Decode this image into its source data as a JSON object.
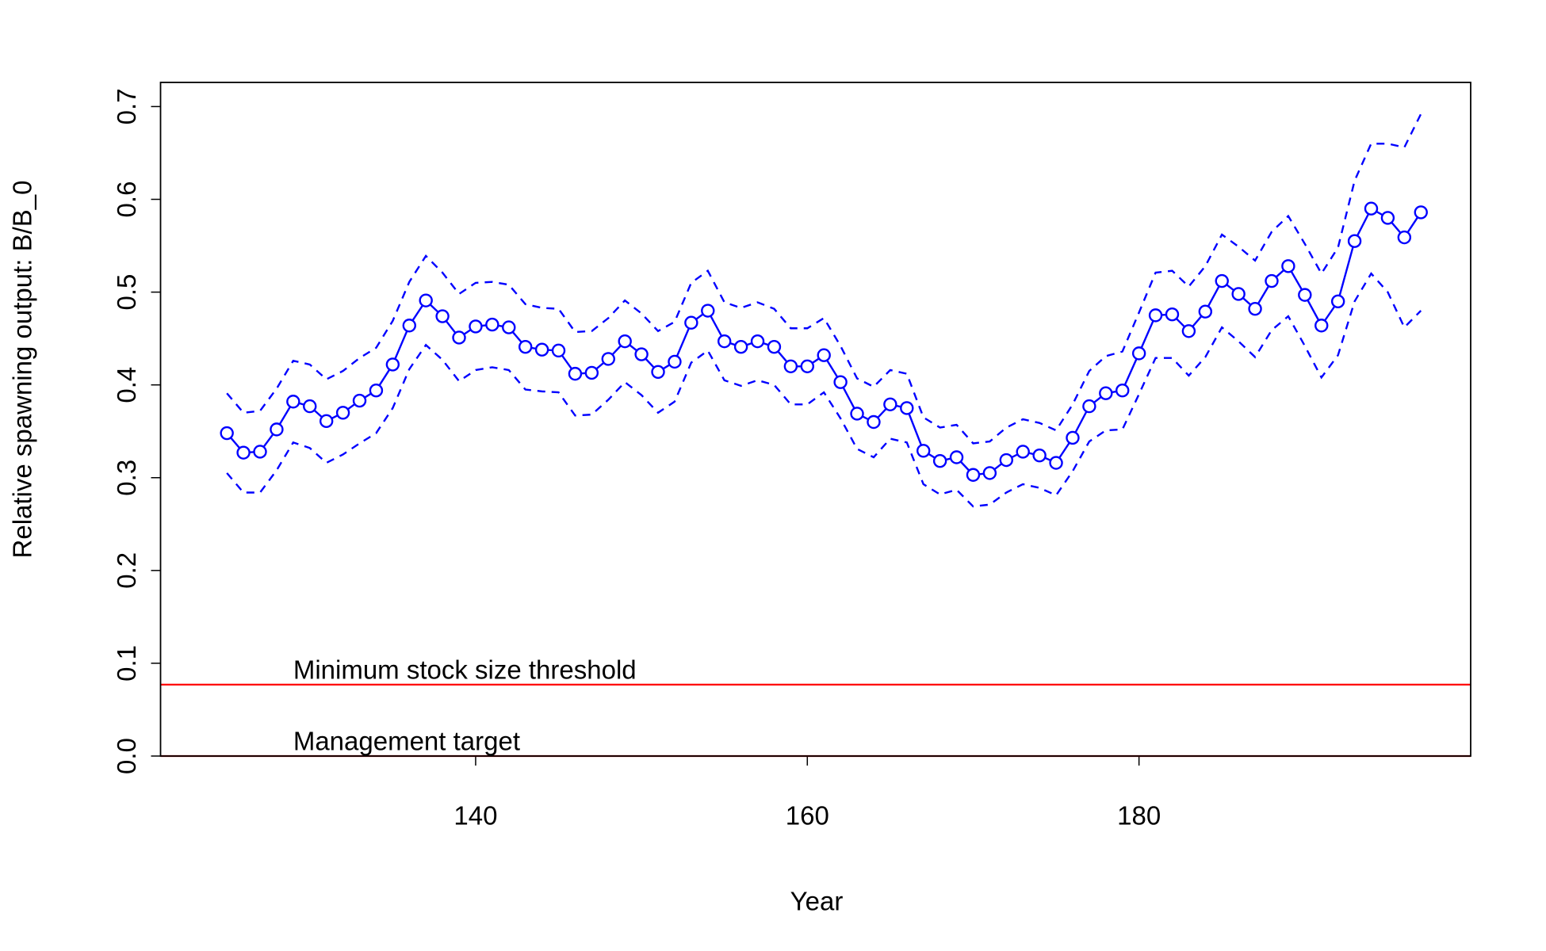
{
  "chart_data": {
    "type": "line",
    "xlabel": "Year",
    "ylabel": "Relative spawning output: B/B_0",
    "x": [
      125,
      126,
      127,
      128,
      129,
      130,
      131,
      132,
      133,
      134,
      135,
      136,
      137,
      138,
      139,
      140,
      141,
      142,
      143,
      144,
      145,
      146,
      147,
      148,
      149,
      150,
      151,
      152,
      153,
      154,
      155,
      156,
      157,
      158,
      159,
      160,
      161,
      162,
      163,
      164,
      165,
      166,
      167,
      168,
      169,
      170,
      171,
      172,
      173,
      174,
      175,
      176,
      177,
      178,
      179,
      180,
      181,
      182,
      183,
      184,
      185,
      186,
      187,
      188,
      189,
      190,
      191,
      192,
      193,
      194,
      195,
      196,
      197
    ],
    "series": [
      {
        "color": "#0000ff",
        "style": "solid",
        "markers": true,
        "values": [
          0.348,
          0.327,
          0.328,
          0.352,
          0.382,
          0.377,
          0.361,
          0.37,
          0.383,
          0.394,
          0.422,
          0.464,
          0.491,
          0.474,
          0.451,
          0.463,
          0.465,
          0.462,
          0.441,
          0.438,
          0.437,
          0.412,
          0.413,
          0.428,
          0.447,
          0.433,
          0.414,
          0.425,
          0.467,
          0.48,
          0.447,
          0.441,
          0.447,
          0.441,
          0.42,
          0.42,
          0.432,
          0.403,
          0.369,
          0.36,
          0.379,
          0.375,
          0.329,
          0.318,
          0.322,
          0.303,
          0.305,
          0.319,
          0.328,
          0.324,
          0.316,
          0.343,
          0.377,
          0.391,
          0.394,
          0.434,
          0.475,
          0.476,
          0.458,
          0.479,
          0.512,
          0.498,
          0.482,
          0.512,
          0.528,
          0.497,
          0.464,
          0.49,
          0.555,
          0.59,
          0.58,
          0.559,
          0.586
        ]
      },
      {
        "color": "#0000ff",
        "style": "dashed",
        "markers": false,
        "values": [
          0.391,
          0.37,
          0.372,
          0.396,
          0.426,
          0.422,
          0.406,
          0.415,
          0.429,
          0.44,
          0.469,
          0.511,
          0.539,
          0.521,
          0.498,
          0.51,
          0.511,
          0.508,
          0.487,
          0.483,
          0.482,
          0.457,
          0.458,
          0.472,
          0.491,
          0.477,
          0.458,
          0.468,
          0.51,
          0.523,
          0.489,
          0.483,
          0.489,
          0.482,
          0.461,
          0.461,
          0.472,
          0.442,
          0.407,
          0.398,
          0.416,
          0.412,
          0.365,
          0.354,
          0.357,
          0.337,
          0.339,
          0.354,
          0.363,
          0.359,
          0.351,
          0.379,
          0.415,
          0.431,
          0.436,
          0.478,
          0.521,
          0.523,
          0.506,
          0.528,
          0.562,
          0.549,
          0.534,
          0.565,
          0.582,
          0.552,
          0.52,
          0.548,
          0.62,
          0.66,
          0.66,
          0.656,
          0.692
        ]
      },
      {
        "color": "#0000ff",
        "style": "dashed",
        "markers": false,
        "values": [
          0.305,
          0.284,
          0.284,
          0.308,
          0.338,
          0.332,
          0.316,
          0.325,
          0.337,
          0.348,
          0.375,
          0.417,
          0.443,
          0.427,
          0.404,
          0.416,
          0.419,
          0.416,
          0.395,
          0.393,
          0.392,
          0.367,
          0.368,
          0.384,
          0.403,
          0.389,
          0.37,
          0.382,
          0.424,
          0.437,
          0.405,
          0.399,
          0.405,
          0.4,
          0.379,
          0.379,
          0.392,
          0.364,
          0.331,
          0.322,
          0.342,
          0.338,
          0.293,
          0.282,
          0.287,
          0.269,
          0.271,
          0.284,
          0.293,
          0.289,
          0.281,
          0.307,
          0.339,
          0.351,
          0.352,
          0.39,
          0.429,
          0.429,
          0.41,
          0.43,
          0.462,
          0.447,
          0.43,
          0.459,
          0.474,
          0.442,
          0.408,
          0.432,
          0.49,
          0.52,
          0.5,
          0.462,
          0.48
        ]
      }
    ],
    "hlines": [
      {
        "value": 0.077,
        "label": "Minimum stock size threshold",
        "label_x": 129,
        "color": "#ff0000"
      },
      {
        "value": 0,
        "label": "Management target",
        "label_x": 129,
        "color": "#ff0000"
      }
    ],
    "xlim": [
      121,
      200
    ],
    "xticks": [
      140,
      160,
      180
    ],
    "ylim": [
      0,
      0.726
    ],
    "yticks": [
      {
        "value": 0,
        "label": "0.0"
      },
      0.1,
      0.2,
      0.3,
      0.4,
      0.5,
      0.6,
      0.7
    ],
    "grid": false
  }
}
